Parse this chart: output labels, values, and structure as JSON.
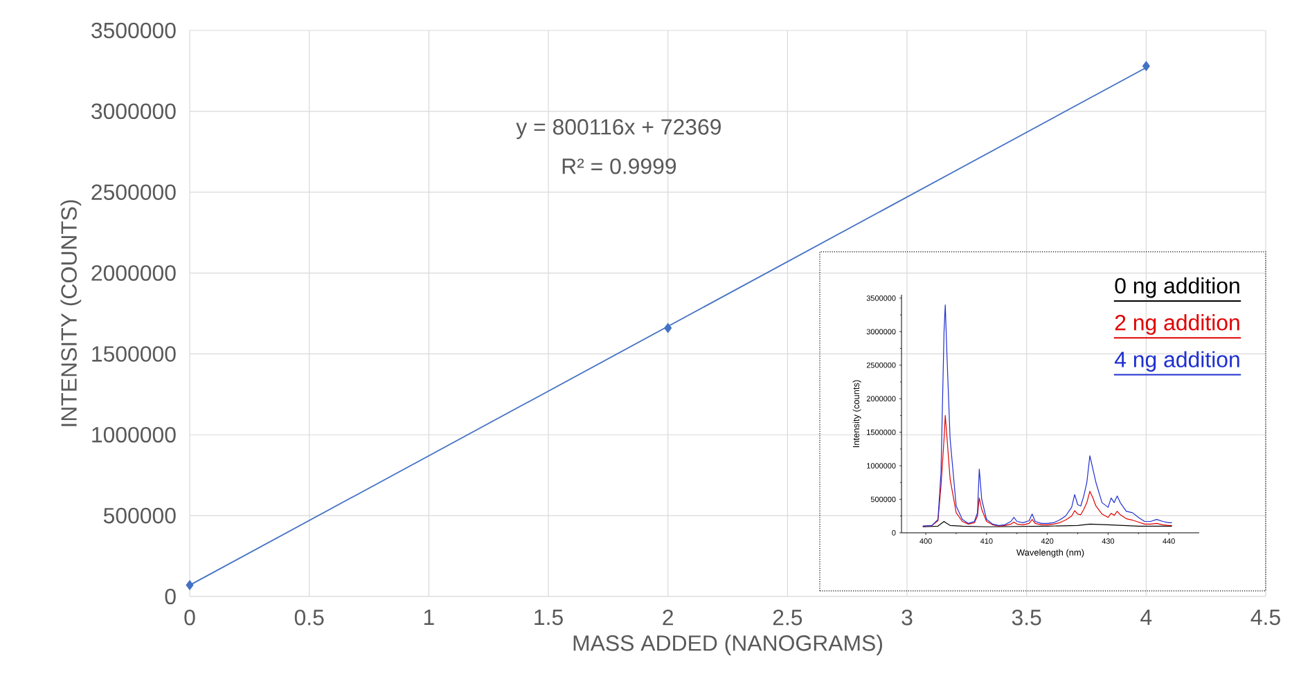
{
  "chart_data": [
    {
      "type": "scatter",
      "xlabel": "MASS ADDED (NANOGRAMS)",
      "ylabel": "INTENSITY (COUNTS)",
      "grid": true,
      "legend": false,
      "annotations": [
        "y = 800116x + 72369",
        "R² = 0.9999"
      ],
      "xlim": [
        0,
        4.5
      ],
      "xticks": [
        0,
        0.5,
        1,
        1.5,
        2,
        2.5,
        3,
        3.5,
        4,
        4.5
      ],
      "ylim": [
        0,
        3500000
      ],
      "yticks": [
        0,
        500000,
        1000000,
        1500000,
        2000000,
        2500000,
        3000000,
        3500000
      ],
      "series": [
        {
          "type": "scatter",
          "marker": "diamond",
          "color": "#4472c4",
          "x": [
            0,
            2,
            4
          ],
          "values": [
            70000,
            1660000,
            3280000
          ]
        },
        {
          "type": "line",
          "color": "#4472c4",
          "x": [
            0,
            4
          ],
          "values": [
            70000,
            3270000
          ]
        }
      ]
    },
    {
      "type": "line",
      "xlabel": "Wavelength (nm)",
      "ylabel": "Intensity (counts)",
      "legend": "top right",
      "xlim": [
        396,
        445
      ],
      "xticks": [
        400,
        410,
        420,
        430,
        440
      ],
      "ylim": [
        0,
        3550000
      ],
      "yticks": [
        0,
        500000,
        1000000,
        1500000,
        2000000,
        2500000,
        3000000,
        3500000
      ],
      "series": [
        {
          "name": "0 ng addition",
          "color": "#000000",
          "x": [
            399.5,
            402,
            403,
            403.3,
            404,
            406,
            410,
            420,
            425,
            427,
            430,
            435,
            440,
            440.5
          ],
          "values": [
            90000,
            100000,
            170000,
            150000,
            110000,
            100000,
            90000,
            100000,
            110000,
            130000,
            120000,
            100000,
            100000,
            100000
          ]
        },
        {
          "name": "2 ng addition",
          "color": "#e00000",
          "x": [
            399.5,
            401,
            402,
            402.5,
            403,
            403.2,
            403.5,
            404,
            405,
            406,
            407,
            408,
            408.5,
            408.8,
            409.2,
            410,
            411,
            412,
            413,
            414,
            414.5,
            415,
            416,
            417,
            417.5,
            418,
            419,
            420,
            421,
            422,
            423,
            424,
            424.5,
            425,
            425.5,
            426,
            426.5,
            427,
            427.5,
            428,
            429,
            430,
            430.5,
            431,
            431.5,
            432,
            433,
            434,
            435,
            436,
            437,
            438,
            439,
            440,
            440.5
          ],
          "values": [
            100000,
            110000,
            180000,
            700000,
            1400000,
            1750000,
            1400000,
            800000,
            300000,
            170000,
            130000,
            150000,
            250000,
            520000,
            350000,
            170000,
            120000,
            100000,
            110000,
            130000,
            160000,
            130000,
            120000,
            140000,
            200000,
            140000,
            120000,
            120000,
            130000,
            150000,
            190000,
            250000,
            330000,
            280000,
            270000,
            350000,
            450000,
            620000,
            520000,
            400000,
            280000,
            230000,
            290000,
            260000,
            320000,
            270000,
            210000,
            190000,
            160000,
            130000,
            130000,
            140000,
            120000,
            110000,
            110000
          ]
        },
        {
          "name": "4 ng addition",
          "color": "#1f2fd0",
          "x": [
            399.5,
            401,
            402,
            402.5,
            403,
            403.2,
            403.5,
            404,
            405,
            406,
            407,
            408,
            408.5,
            408.8,
            409.2,
            410,
            411,
            412,
            413,
            414,
            414.5,
            415,
            416,
            417,
            417.5,
            418,
            419,
            420,
            421,
            422,
            423,
            424,
            424.5,
            425,
            425.5,
            426,
            426.5,
            427,
            427.5,
            428,
            429,
            430,
            430.5,
            431,
            431.5,
            432,
            433,
            434,
            435,
            436,
            437,
            438,
            439,
            440,
            440.5
          ],
          "values": [
            100000,
            110000,
            200000,
            900000,
            3000000,
            3400000,
            2600000,
            1400000,
            400000,
            200000,
            140000,
            170000,
            300000,
            950000,
            500000,
            200000,
            130000,
            110000,
            120000,
            170000,
            230000,
            170000,
            150000,
            180000,
            280000,
            170000,
            140000,
            140000,
            150000,
            190000,
            250000,
            380000,
            570000,
            420000,
            400000,
            550000,
            750000,
            1150000,
            950000,
            750000,
            450000,
            380000,
            520000,
            450000,
            550000,
            450000,
            320000,
            300000,
            230000,
            170000,
            170000,
            200000,
            170000,
            150000,
            150000
          ]
        }
      ]
    }
  ]
}
